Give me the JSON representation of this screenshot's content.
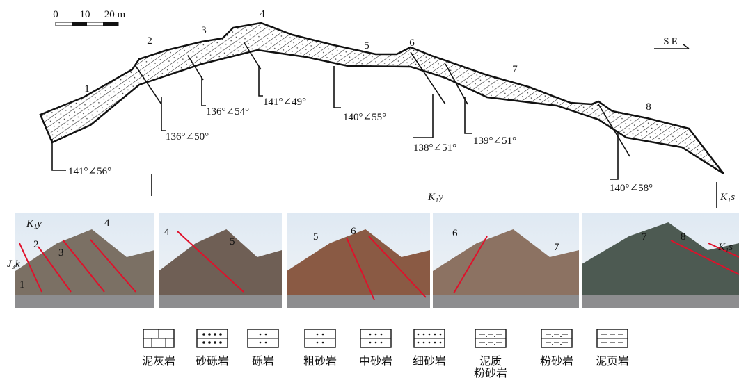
{
  "scale": {
    "labels": [
      "0",
      "10",
      "20 m"
    ]
  },
  "direction": "SE",
  "section": {
    "beds": [
      "1",
      "2",
      "3",
      "4",
      "5",
      "6",
      "7",
      "8"
    ],
    "attitudes": [
      "141°∠56°",
      "136°∠50°",
      "136°∠54°",
      "141°∠49°",
      "140°∠55°",
      "138°∠51°",
      "139°∠51°",
      "140°∠58°"
    ],
    "formations": [
      "K₁y",
      "K₁s"
    ]
  },
  "photos": [
    {
      "labels": [
        "K₁y",
        "J₃k",
        "1",
        "2",
        "3",
        "4"
      ]
    },
    {
      "labels": [
        "4",
        "5"
      ]
    },
    {
      "labels": [
        "5",
        "6"
      ]
    },
    {
      "labels": [
        "6",
        "7"
      ]
    },
    {
      "labels": [
        "7",
        "8",
        "K₁s"
      ]
    }
  ],
  "legend": [
    "泥灰岩",
    "砂砾岩",
    "砾岩",
    "粗砂岩",
    "中砂岩",
    "细砂岩",
    "泥质\n粉砂岩",
    "粉砂岩",
    "泥页岩"
  ]
}
